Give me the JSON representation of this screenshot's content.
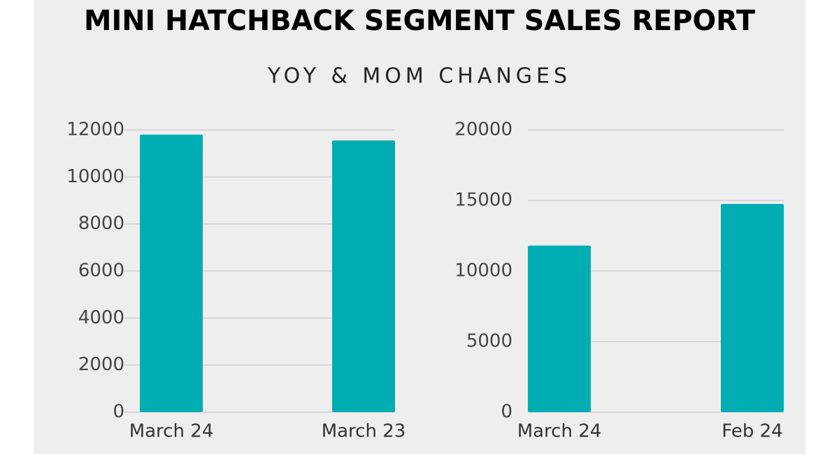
{
  "header": {
    "title": "MINI HATCHBACK SEGMENT SALES REPORT",
    "subtitle": "YOY & MOM CHANGES"
  },
  "chart_data": [
    {
      "type": "bar",
      "categories": [
        "March 24",
        "March 23"
      ],
      "values": [
        11800,
        11550
      ],
      "color": "#00adb3",
      "ylim": [
        0,
        12000
      ],
      "yticks": [
        0,
        2000,
        4000,
        6000,
        8000,
        10000,
        12000
      ],
      "grid": true
    },
    {
      "type": "bar",
      "categories": [
        "March 24",
        "Feb 24"
      ],
      "values": [
        11800,
        14750
      ],
      "color": "#00adb3",
      "ylim": [
        0,
        20000
      ],
      "yticks": [
        0,
        5000,
        10000,
        15000,
        20000
      ],
      "grid": true
    }
  ]
}
